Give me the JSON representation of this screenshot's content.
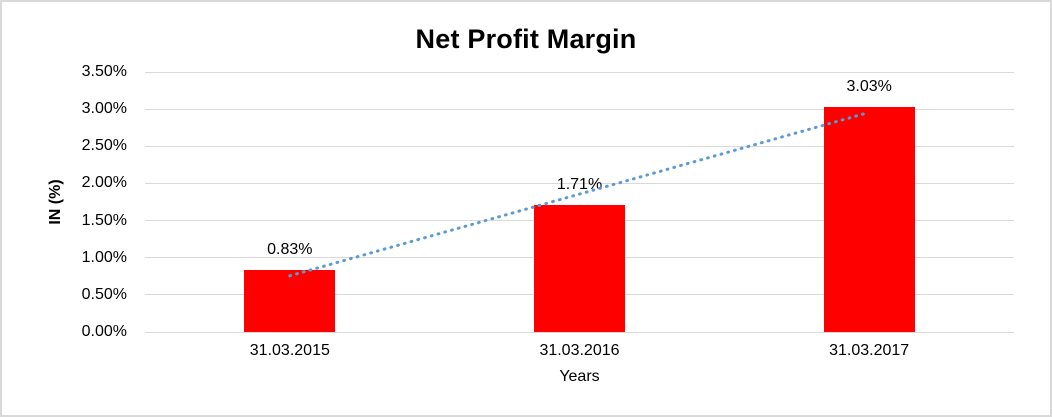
{
  "chart_data": {
    "type": "bar",
    "title": "Net Profit Margin",
    "categories": [
      "31.03.2015",
      "31.03.2016",
      "31.03.2017"
    ],
    "values": [
      0.83,
      1.71,
      3.03
    ],
    "data_labels": [
      "0.83%",
      "1.71%",
      "3.03%"
    ],
    "xlabel": "Years",
    "ylabel": "IN (%)",
    "ylim": [
      0,
      3.5
    ],
    "ytick_values": [
      0,
      0.5,
      1,
      1.5,
      2,
      2.5,
      3,
      3.5
    ],
    "ytick_labels": [
      "0.00%",
      "0.50%",
      "1.00%",
      "1.50%",
      "2.00%",
      "2.50%",
      "3.00%",
      "3.50%"
    ],
    "grid": true,
    "legend": "none",
    "bar_color": "#ff0000",
    "gridline_color": "#d9d9d9",
    "frame_color": "#d9d9d9",
    "text_color": "#000000",
    "trendline": {
      "type": "linear",
      "style": "dotted",
      "color": "#5b9bd5"
    }
  }
}
